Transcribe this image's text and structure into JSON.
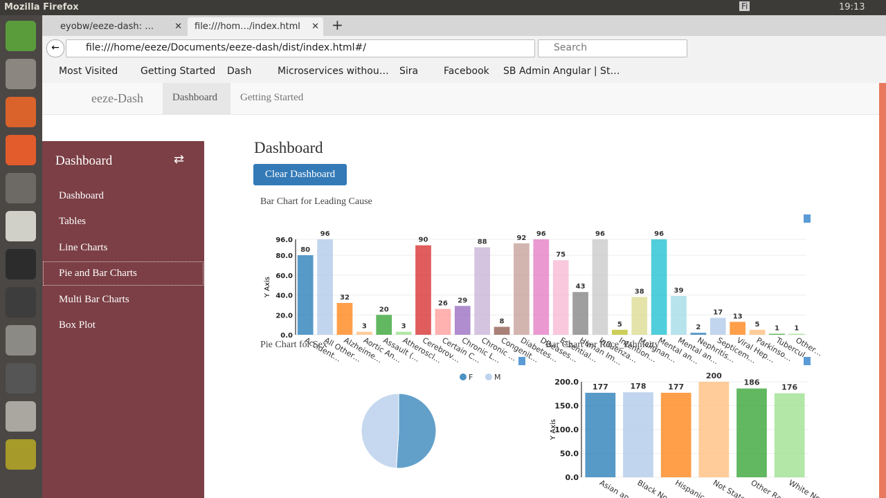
{
  "os": {
    "title": "Mozilla Firefox",
    "keyboard": "Fi",
    "clock": "19:13"
  },
  "browser": {
    "tabs": [
      "eyobw/eeze-dash: …",
      "file:///hom…/index.html"
    ],
    "url": "file:///home/eeze/Documents/eeze-dash/dist/index.html#/",
    "search": "Search",
    "bookmarks": [
      "Most Visited",
      "Getting Started",
      "Dash",
      "Microservices withou…",
      "Sira",
      "Facebook",
      "SB Admin Angular | St…"
    ]
  },
  "app": {
    "brand": "eeze-Dash",
    "nav": [
      "Dashboard",
      "Getting Started"
    ],
    "sidebar_title": "Dashboard",
    "sidebar": [
      "Dashboard",
      "Tables",
      "Line Charts",
      "Pie and Bar Charts",
      "Multi Bar Charts",
      "Box Plot"
    ],
    "page_title": "Dashboard",
    "button": "Clear Dashboard"
  },
  "charts": [
    {
      "type": "bar",
      "title": "Bar Chart for Leading Cause",
      "y_label": "Y Axis",
      "categories": [
        "Accident…",
        "All Other…",
        "Alzheime…",
        "Aortic An…",
        "Assault (…",
        "Atheroscl…",
        "Cerebrov…",
        "Certain C…",
        "Chronic L…",
        "Chronic …",
        "Congenit…",
        "Diabetes…",
        "Diseases…",
        "Essential…",
        "Human Im…",
        "Influenza…",
        "Intention…",
        "Malignan…",
        "Mental an…",
        "Mental an…",
        "Nephritis…",
        "Septicem…",
        "Viral Hep…",
        "Parkinso…",
        "Tubercul…",
        "Other…"
      ],
      "values": [
        80,
        96,
        32,
        3,
        20,
        3,
        90,
        26,
        29,
        88,
        8,
        92,
        96,
        75,
        43,
        96,
        5,
        38,
        96,
        39,
        2,
        17,
        13,
        5,
        1,
        1
      ],
      "palette": [
        "#1f77b4",
        "#aec7e8",
        "#ff7f0e",
        "#ffbb78",
        "#2ca02c",
        "#98df8a",
        "#d62728",
        "#ff9896",
        "#9467bd",
        "#c5b0d5",
        "#8c564b",
        "#c49c94",
        "#e377c2",
        "#f7b6d2",
        "#7f7f7f",
        "#c7c7c7",
        "#bcbd22",
        "#dbdb8d",
        "#17becf",
        "#9edae5"
      ],
      "ylim": [
        0,
        96
      ],
      "yticks": [
        {
          "value": 0,
          "label": "0.0"
        },
        {
          "value": 20,
          "label": "20.0"
        },
        {
          "value": 40,
          "label": "40.0"
        },
        {
          "value": 60,
          "label": "60.0"
        },
        {
          "value": 80,
          "label": "80.0"
        },
        {
          "value": 96,
          "label": "96.0"
        }
      ],
      "grid": true
    },
    {
      "type": "pie",
      "title": "Pie Chart for Sex",
      "categories": [
        "F",
        "M"
      ],
      "values": [
        51,
        49
      ],
      "colors": [
        "#1f77b4",
        "#aec7e8"
      ]
    },
    {
      "type": "bar",
      "title": "Bar Chart for Race_Ethnicity",
      "y_label": "Y Axis",
      "categories": [
        "Asian an…",
        "Black No…",
        "Hispanic…",
        "Not State…",
        "Other Ra…",
        "White No…"
      ],
      "values": [
        177,
        178,
        177,
        200,
        186,
        176
      ],
      "palette": [
        "#1f77b4",
        "#aec7e8",
        "#ff7f0e",
        "#ffbb78",
        "#2ca02c",
        "#98df8a"
      ],
      "ylim": [
        0,
        200
      ],
      "yticks": [
        {
          "value": 0,
          "label": "0.0"
        },
        {
          "value": 50,
          "label": "50.0"
        },
        {
          "value": 100,
          "label": "100.0"
        },
        {
          "value": 150,
          "label": "150.0"
        },
        {
          "value": 200,
          "label": "200.0"
        }
      ],
      "grid": true
    }
  ]
}
